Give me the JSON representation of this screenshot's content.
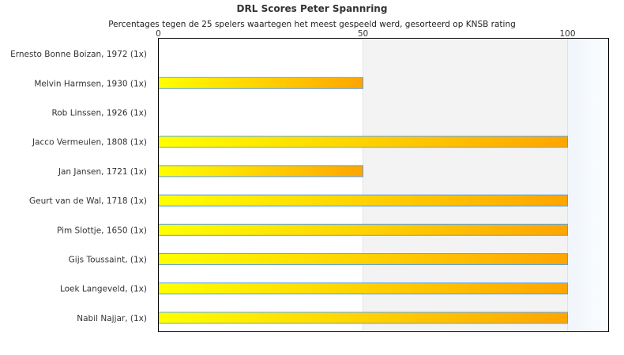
{
  "chart_data": {
    "type": "bar",
    "orientation": "horizontal",
    "title": "DRL Scores Peter Spannring",
    "subtitle": "Percentages tegen de 25 spelers waartegen het meest gespeeld werd, gesorteerd op KNSB rating",
    "categories": [
      "Ernesto Bonne Boizan, 1972 (1x)",
      "Melvin Harmsen, 1930 (1x)",
      "Rob Linssen, 1926 (1x)",
      "Jacco Vermeulen, 1808 (1x)",
      "Jan Jansen, 1721 (1x)",
      "Geurt van de Wal, 1718 (1x)",
      "Pim Slottje, 1650 (1x)",
      "Gijs Toussaint,  (1x)",
      "Loek Langeveld,  (1x)",
      "Nabil Najjar,  (1x)"
    ],
    "values": [
      0,
      50,
      0,
      100,
      50,
      100,
      100,
      100,
      100,
      100
    ],
    "xlim": [
      0,
      110
    ],
    "xticks": [
      "0",
      "50",
      "100"
    ],
    "xtick_values": [
      0,
      50,
      100
    ],
    "bands": [
      {
        "from": 0,
        "to": 50,
        "color": "#ffffff"
      },
      {
        "from": 50,
        "to": 100,
        "color": "#f3f3f3"
      },
      {
        "from": 100,
        "to": 110,
        "color": "#f4f8fc"
      }
    ],
    "bar_gradient": [
      "#ffff00",
      "#ffa500"
    ],
    "bar_border": "#5aa0e6",
    "xlabel": "",
    "ylabel": ""
  }
}
